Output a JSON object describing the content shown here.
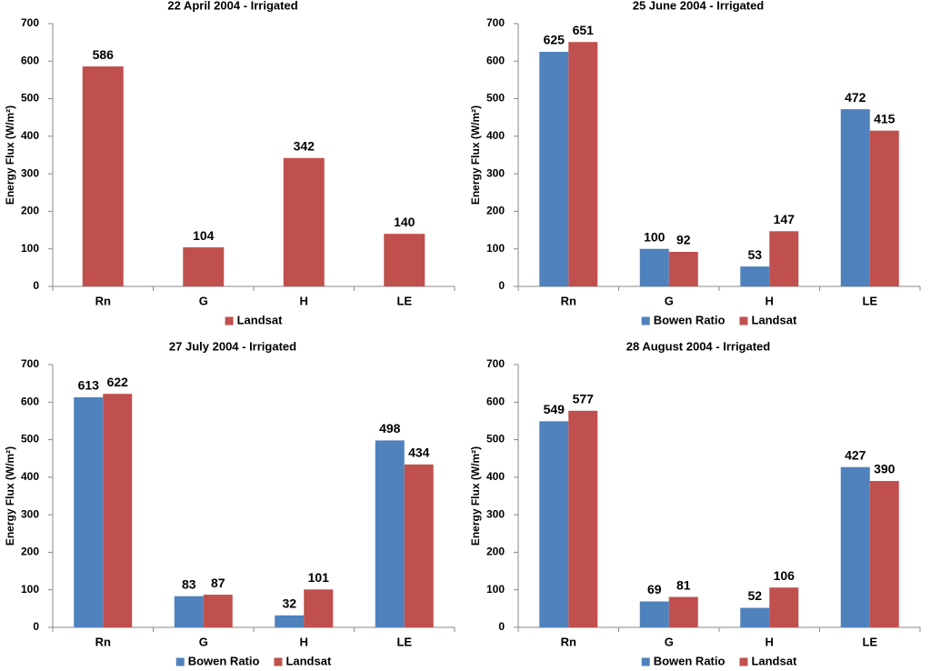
{
  "chart_data": [
    {
      "type": "bar",
      "title": "22 April 2004 - Irrigated",
      "y_label": "Energy Flux (W/m²)",
      "categories": [
        "Rn",
        "G",
        "H",
        "LE"
      ],
      "series": [
        {
          "name": "Landsat",
          "color": "#c0504d",
          "values": [
            586,
            104,
            342,
            140
          ]
        }
      ],
      "ylim": [
        0,
        700
      ],
      "yticks": [
        0,
        100,
        200,
        300,
        400,
        500,
        600,
        700
      ],
      "legend": "bottom"
    },
    {
      "type": "bar",
      "title": "25 June 2004 - Irrigated",
      "y_label": "Energy Flux (W/m²)",
      "categories": [
        "Rn",
        "G",
        "H",
        "LE"
      ],
      "series": [
        {
          "name": "Bowen Ratio",
          "color": "#4f81bd",
          "values": [
            625,
            100,
            53,
            472
          ]
        },
        {
          "name": "Landsat",
          "color": "#c0504d",
          "values": [
            651,
            92,
            147,
            415
          ]
        }
      ],
      "ylim": [
        0,
        700
      ],
      "yticks": [
        0,
        100,
        200,
        300,
        400,
        500,
        600,
        700
      ],
      "legend": "bottom"
    },
    {
      "type": "bar",
      "title": "27 July 2004 - Irrigated",
      "y_label": "Energy Flux (W/m²)",
      "categories": [
        "Rn",
        "G",
        "H",
        "LE"
      ],
      "series": [
        {
          "name": "Bowen Ratio",
          "color": "#4f81bd",
          "values": [
            613,
            83,
            32,
            498
          ]
        },
        {
          "name": "Landsat",
          "color": "#c0504d",
          "values": [
            622,
            87,
            101,
            434
          ]
        }
      ],
      "ylim": [
        0,
        700
      ],
      "yticks": [
        0,
        100,
        200,
        300,
        400,
        500,
        600,
        700
      ],
      "legend": "bottom"
    },
    {
      "type": "bar",
      "title": "28 August 2004 - Irrigated",
      "y_label": "Energy Flux (W/m²)",
      "categories": [
        "Rn",
        "G",
        "H",
        "LE"
      ],
      "series": [
        {
          "name": "Bowen Ratio",
          "color": "#4f81bd",
          "values": [
            549,
            69,
            52,
            427
          ]
        },
        {
          "name": "Landsat",
          "color": "#c0504d",
          "values": [
            577,
            81,
            106,
            390
          ]
        }
      ],
      "ylim": [
        0,
        700
      ],
      "yticks": [
        0,
        100,
        200,
        300,
        400,
        500,
        600,
        700
      ],
      "legend": "bottom"
    }
  ]
}
